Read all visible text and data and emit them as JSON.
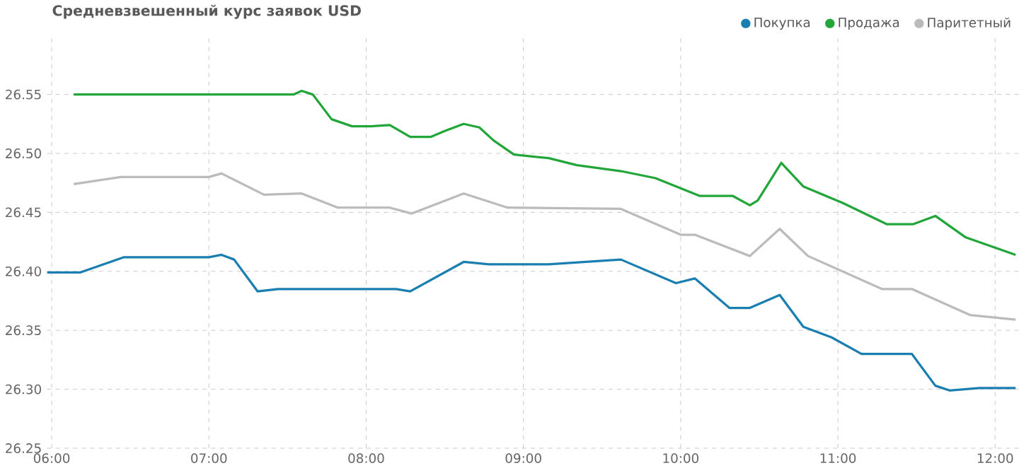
{
  "chart_data": {
    "type": "line",
    "title": "Средневзвешенный курс заявок USD",
    "xlim": [
      5.97,
      12.15
    ],
    "ylim": [
      26.25,
      26.6
    ],
    "xticks": [
      {
        "value": 6,
        "label": "06:00"
      },
      {
        "value": 7,
        "label": "07:00"
      },
      {
        "value": 8,
        "label": "08:00"
      },
      {
        "value": 9,
        "label": "09:00"
      },
      {
        "value": 10,
        "label": "10:00"
      },
      {
        "value": 11,
        "label": "11:00"
      },
      {
        "value": 12,
        "label": "12:00"
      }
    ],
    "yticks": [
      26.25,
      {
        "value": 26.3,
        "label": "26.30"
      },
      26.35,
      {
        "value": 26.4,
        "label": "26.40"
      },
      26.45,
      {
        "value": 26.5,
        "label": "26.50"
      },
      26.55
    ],
    "grid": true,
    "legend": "top",
    "marker": "none",
    "line_style": "solid",
    "series": [
      {
        "name": "Покупка",
        "color": "#1a7fb0",
        "x": [
          5.97,
          6.18,
          6.46,
          7.0,
          7.08,
          7.16,
          7.31,
          7.44,
          8.19,
          8.28,
          8.62,
          8.78,
          9.16,
          9.62,
          9.97,
          10.09,
          10.31,
          10.44,
          10.63,
          10.78,
          10.96,
          11.15,
          11.47,
          11.62,
          11.71,
          11.9,
          12.13
        ],
        "values": [
          26.399,
          26.399,
          26.412,
          26.412,
          26.414,
          26.41,
          26.383,
          26.385,
          26.385,
          26.383,
          26.408,
          26.406,
          26.406,
          26.41,
          26.39,
          26.394,
          26.369,
          26.369,
          26.38,
          26.353,
          26.344,
          26.33,
          26.33,
          26.303,
          26.299,
          26.301,
          26.301
        ]
      },
      {
        "name": "Продажа",
        "color": "#22a63a",
        "x": [
          6.14,
          7.54,
          7.59,
          7.66,
          7.78,
          7.91,
          8.03,
          8.15,
          8.28,
          8.41,
          8.5,
          8.62,
          8.72,
          8.81,
          8.94,
          9.16,
          9.34,
          9.62,
          9.84,
          10.12,
          10.33,
          10.44,
          10.49,
          10.64,
          10.78,
          11.03,
          11.31,
          11.48,
          11.62,
          11.81,
          12.13
        ],
        "values": [
          26.55,
          26.55,
          26.553,
          26.55,
          26.529,
          26.523,
          26.523,
          26.524,
          26.514,
          26.514,
          26.519,
          26.525,
          26.522,
          26.511,
          26.499,
          26.496,
          26.49,
          26.485,
          26.479,
          26.464,
          26.464,
          26.456,
          26.46,
          26.492,
          26.472,
          26.458,
          26.44,
          26.44,
          26.447,
          26.429,
          26.414
        ]
      },
      {
        "name": "Паритетный",
        "color": "#bbbbbb",
        "x": [
          6.14,
          6.44,
          7.0,
          7.08,
          7.35,
          7.59,
          7.82,
          8.15,
          8.29,
          8.62,
          8.9,
          9.62,
          10.0,
          10.09,
          10.44,
          10.63,
          10.81,
          11.28,
          11.47,
          11.84,
          12.13
        ],
        "values": [
          26.474,
          26.48,
          26.48,
          26.483,
          26.465,
          26.466,
          26.454,
          26.454,
          26.449,
          26.466,
          26.454,
          26.453,
          26.431,
          26.431,
          26.413,
          26.436,
          26.413,
          26.385,
          26.385,
          26.363,
          26.359
        ]
      }
    ]
  }
}
